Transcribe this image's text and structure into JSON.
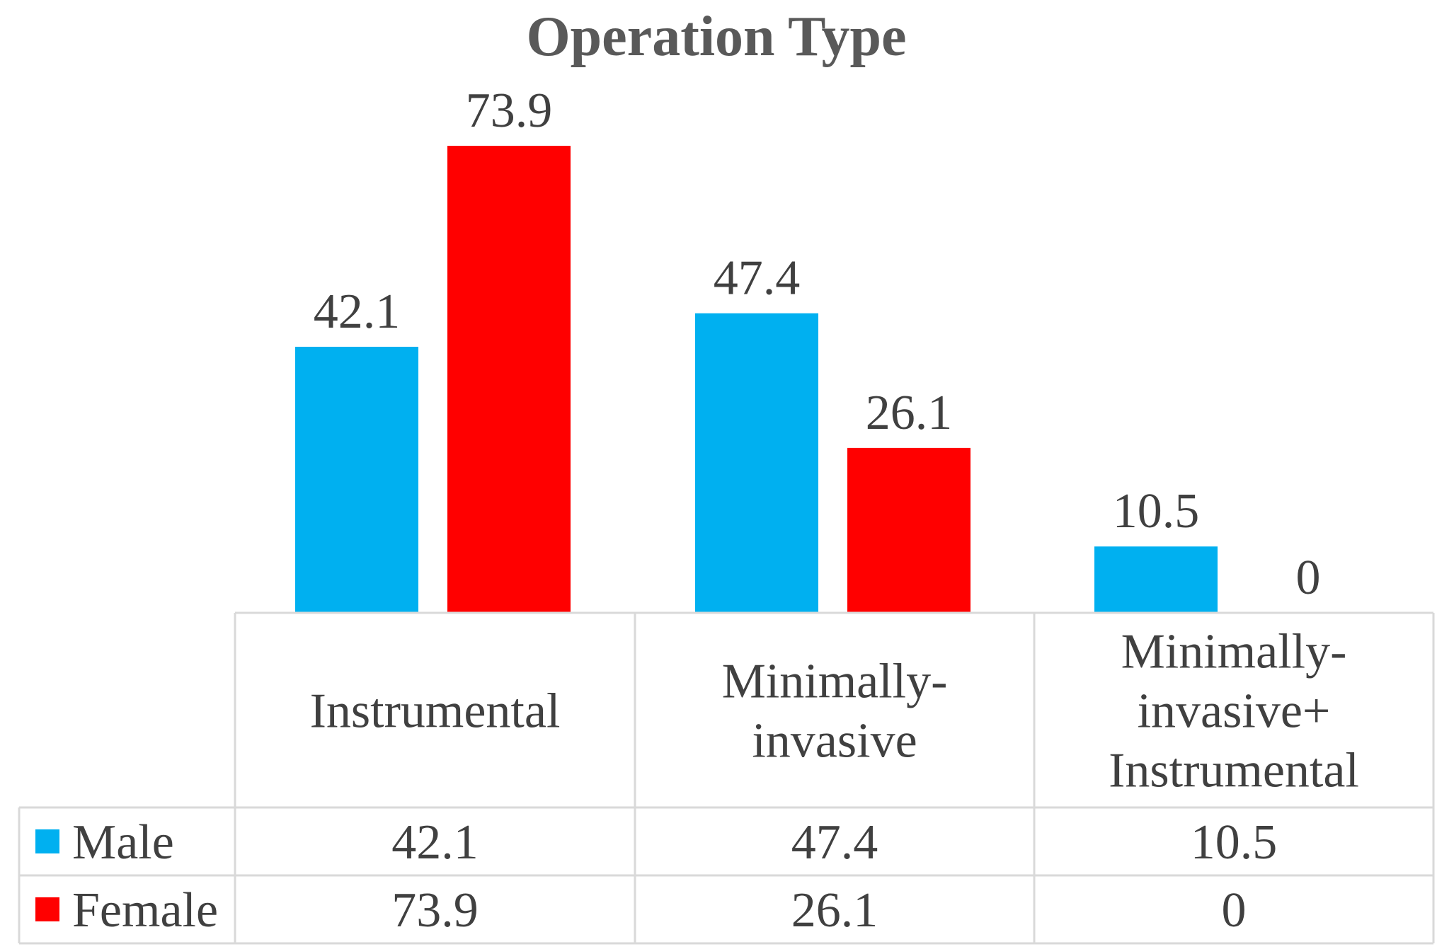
{
  "chart_data": {
    "type": "bar",
    "title": "Operation Type",
    "categories": [
      [
        "Instrumental"
      ],
      [
        "Minimally-",
        "invasive"
      ],
      [
        "Minimally-",
        "invasive+",
        "Instrumental"
      ]
    ],
    "series": [
      {
        "name": "Male",
        "values": [
          42.1,
          47.4,
          10.5
        ],
        "labels": [
          "42.1",
          "47.4",
          "10.5"
        ],
        "color": "#00b0f0"
      },
      {
        "name": "Female",
        "values": [
          73.9,
          26.1,
          0
        ],
        "labels": [
          "73.9",
          "26.1",
          "0"
        ],
        "color": "#ff0000"
      }
    ],
    "ylim": [
      0,
      80
    ],
    "legend": "data-table",
    "grid": false
  }
}
